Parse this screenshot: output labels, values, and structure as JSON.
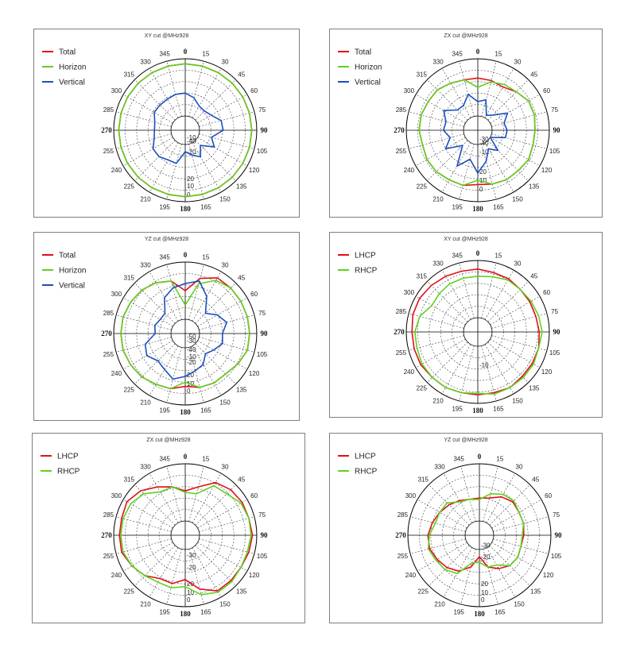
{
  "angle_labels": [
    "0",
    "15",
    "30",
    "45",
    "60",
    "75",
    "90",
    "105",
    "120",
    "135",
    "150",
    "165",
    "180",
    "195",
    "210",
    "225",
    "240",
    "255",
    "270",
    "285",
    "300",
    "315",
    "330",
    "345"
  ],
  "chart_data": [
    {
      "type": "polar",
      "title": "XY cut @MHz928",
      "radial_labels": [
        "0",
        "10",
        "20",
        "-10",
        "-20",
        "-40"
      ],
      "legend_position": "top-left",
      "series": [
        {
          "name": "Total",
          "color": "#e0101a",
          "values": [
            0.93,
            0.93,
            0.93,
            0.93,
            0.93,
            0.93,
            0.93,
            0.93,
            0.93,
            0.93,
            0.93,
            0.93,
            0.93,
            0.93,
            0.93,
            0.93,
            0.93,
            0.93,
            0.93,
            0.93,
            0.93,
            0.93,
            0.93,
            0.93
          ]
        },
        {
          "name": "Horizon",
          "color": "#5fd21e",
          "values": [
            0.93,
            0.93,
            0.93,
            0.93,
            0.93,
            0.93,
            0.93,
            0.93,
            0.93,
            0.93,
            0.93,
            0.93,
            0.93,
            0.93,
            0.93,
            0.93,
            0.93,
            0.93,
            0.93,
            0.93,
            0.93,
            0.93,
            0.93,
            0.93
          ]
        },
        {
          "name": "Vertical",
          "color": "#1a4fbf",
          "values": [
            0.52,
            0.47,
            0.39,
            0.38,
            0.42,
            0.52,
            0.53,
            0.38,
            0.47,
            0.3,
            0.43,
            0.36,
            0.3,
            0.48,
            0.48,
            0.52,
            0.52,
            0.45,
            0.43,
            0.44,
            0.5,
            0.5,
            0.5,
            0.52
          ]
        }
      ]
    },
    {
      "type": "polar",
      "title": "ZX cut @MHz928",
      "radial_labels": [
        "0",
        "10",
        "20",
        "-10",
        "-30",
        "-40"
      ],
      "legend_position": "top-left",
      "series": [
        {
          "name": "Total",
          "color": "#e0101a",
          "values": [
            0.73,
            0.72,
            0.7,
            0.76,
            0.82,
            0.82,
            0.8,
            0.8,
            0.82,
            0.8,
            0.8,
            0.78,
            0.76,
            0.8,
            0.8,
            0.82,
            0.82,
            0.8,
            0.82,
            0.82,
            0.8,
            0.8,
            0.76,
            0.73
          ]
        },
        {
          "name": "Horizon",
          "color": "#5fd21e",
          "values": [
            0.6,
            0.7,
            0.74,
            0.76,
            0.82,
            0.82,
            0.8,
            0.8,
            0.82,
            0.8,
            0.8,
            0.78,
            0.7,
            0.8,
            0.8,
            0.82,
            0.82,
            0.8,
            0.82,
            0.82,
            0.8,
            0.8,
            0.76,
            0.73
          ]
        },
        {
          "name": "Vertical",
          "color": "#1a4fbf",
          "values": [
            0.4,
            0.44,
            0.24,
            0.3,
            0.48,
            0.38,
            0.41,
            0.4,
            0.2,
            0.4,
            0.3,
            0.45,
            0.6,
            0.42,
            0.58,
            0.3,
            0.52,
            0.4,
            0.48,
            0.46,
            0.55,
            0.4,
            0.4,
            0.52
          ]
        }
      ]
    },
    {
      "type": "polar",
      "title": "YZ cut @MHz928",
      "radial_labels": [
        "0",
        "10",
        "20",
        "-10",
        "-20",
        "-30",
        "-40",
        "-50"
      ],
      "legend_position": "top-left",
      "series": [
        {
          "name": "Total",
          "color": "#e0101a",
          "values": [
            0.6,
            0.8,
            0.9,
            0.9,
            0.9,
            0.9,
            0.9,
            0.9,
            0.85,
            0.8,
            0.8,
            0.78,
            0.74,
            0.8,
            0.82,
            0.86,
            0.88,
            0.9,
            0.9,
            0.9,
            0.88,
            0.86,
            0.82,
            0.76
          ]
        },
        {
          "name": "Horizon",
          "color": "#5fd21e",
          "values": [
            0.4,
            0.72,
            0.86,
            0.9,
            0.9,
            0.9,
            0.9,
            0.9,
            0.85,
            0.8,
            0.8,
            0.78,
            0.68,
            0.8,
            0.82,
            0.86,
            0.88,
            0.9,
            0.9,
            0.9,
            0.88,
            0.86,
            0.82,
            0.76
          ]
        },
        {
          "name": "Vertical",
          "color": "#1a4fbf",
          "values": [
            0.7,
            0.76,
            0.6,
            0.4,
            0.52,
            0.6,
            0.52,
            0.54,
            0.46,
            0.4,
            0.5,
            0.54,
            0.6,
            0.66,
            0.58,
            0.54,
            0.62,
            0.58,
            0.42,
            0.44,
            0.4,
            0.4,
            0.58,
            0.66
          ]
        }
      ]
    },
    {
      "type": "polar",
      "title": "XY cut @MHz928",
      "radial_labels": [
        "-10"
      ],
      "legend_position": "top-left",
      "series": [
        {
          "name": "LHCP",
          "color": "#e0101a",
          "values": [
            0.88,
            0.86,
            0.86,
            0.84,
            0.84,
            0.84,
            0.86,
            0.88,
            0.88,
            0.88,
            0.9,
            0.88,
            0.88,
            0.88,
            0.9,
            0.9,
            0.92,
            0.92,
            0.92,
            0.94,
            0.94,
            0.92,
            0.9,
            0.88
          ]
        },
        {
          "name": "RHCP",
          "color": "#5fd21e",
          "values": [
            0.78,
            0.8,
            0.84,
            0.84,
            0.86,
            0.88,
            0.9,
            0.88,
            0.9,
            0.9,
            0.9,
            0.9,
            0.86,
            0.88,
            0.9,
            0.9,
            0.9,
            0.88,
            0.88,
            0.84,
            0.74,
            0.76,
            0.78,
            0.78
          ]
        }
      ]
    },
    {
      "type": "polar",
      "title": "ZX cut @MHz928",
      "radial_labels": [
        "0",
        "10",
        "20",
        "-20",
        "-30"
      ],
      "legend_position": "top-left",
      "series": [
        {
          "name": "LHCP",
          "color": "#e0101a",
          "values": [
            0.62,
            0.7,
            0.85,
            0.9,
            0.92,
            0.92,
            0.94,
            0.92,
            0.9,
            0.9,
            0.9,
            0.78,
            0.62,
            0.7,
            0.7,
            0.8,
            0.86,
            0.92,
            0.92,
            0.92,
            0.94,
            0.88,
            0.78,
            0.7
          ]
        },
        {
          "name": "RHCP",
          "color": "#5fd21e",
          "values": [
            0.6,
            0.6,
            0.8,
            0.82,
            0.9,
            0.92,
            0.92,
            0.9,
            0.9,
            0.92,
            0.92,
            0.86,
            0.72,
            0.76,
            0.76,
            0.8,
            0.86,
            0.9,
            0.9,
            0.9,
            0.88,
            0.82,
            0.7,
            0.7
          ]
        }
      ]
    },
    {
      "type": "polar",
      "title": "YZ cut @MHz928",
      "radial_labels": [
        "0",
        "10",
        "20",
        "-20",
        "-30"
      ],
      "legend_position": "top-left",
      "series": [
        {
          "name": "LHCP",
          "color": "#e0101a",
          "values": [
            0.52,
            0.54,
            0.62,
            0.66,
            0.64,
            0.64,
            0.62,
            0.6,
            0.62,
            0.6,
            0.54,
            0.46,
            0.3,
            0.46,
            0.58,
            0.64,
            0.68,
            0.72,
            0.72,
            0.68,
            0.64,
            0.6,
            0.56,
            0.52
          ]
        },
        {
          "name": "RHCP",
          "color": "#5fd21e",
          "values": [
            0.5,
            0.6,
            0.66,
            0.68,
            0.64,
            0.64,
            0.6,
            0.6,
            0.62,
            0.6,
            0.48,
            0.46,
            0.38,
            0.4,
            0.62,
            0.68,
            0.7,
            0.74,
            0.7,
            0.64,
            0.64,
            0.64,
            0.54,
            0.52
          ]
        }
      ]
    }
  ]
}
